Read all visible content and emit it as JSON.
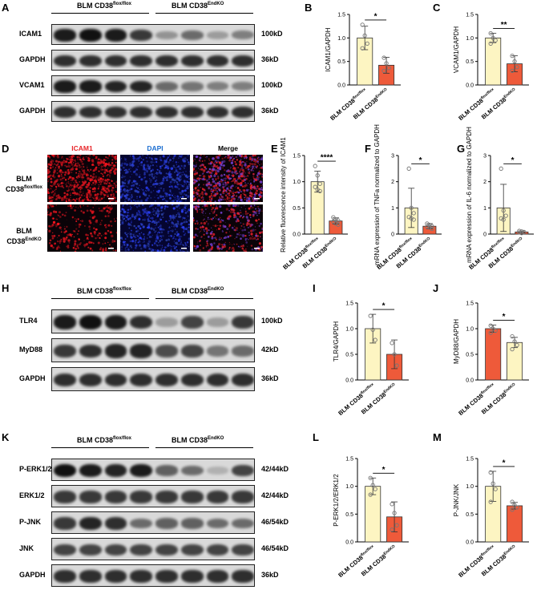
{
  "panels": {
    "A": {
      "letter": "A",
      "groups": [
        "BLM CD38",
        "BLM CD38"
      ],
      "group_sup": [
        "flox/flox",
        "EndKO"
      ],
      "rows": [
        {
          "label": "ICAM1",
          "kd": "100kD",
          "intensity": [
            0.95,
            1.0,
            0.95,
            0.8,
            0.35,
            0.55,
            0.3,
            0.45
          ]
        },
        {
          "label": "GAPDH",
          "kd": "36kD",
          "intensity": [
            0.85,
            0.85,
            0.85,
            0.85,
            0.85,
            0.85,
            0.85,
            0.85
          ]
        },
        {
          "label": "VCAM1",
          "kd": "100kD",
          "intensity": [
            0.95,
            0.95,
            0.9,
            0.9,
            0.55,
            0.5,
            0.45,
            0.45
          ]
        },
        {
          "label": "GAPDH",
          "kd": "36kD",
          "intensity": [
            0.85,
            0.85,
            0.85,
            0.85,
            0.85,
            0.85,
            0.85,
            0.85
          ]
        }
      ]
    },
    "D": {
      "letter": "D",
      "columns": [
        "ICAM1",
        "DAPI",
        "Merge"
      ],
      "column_colors": [
        "#e8262a",
        "#1d6fd1",
        "#000000"
      ],
      "row_labels": [
        [
          "BLM",
          "CD38",
          "flox/flox"
        ],
        [
          "BLM",
          "CD38",
          "EndKO"
        ]
      ]
    },
    "H": {
      "letter": "H",
      "groups": [
        "BLM CD38",
        "BLM CD38"
      ],
      "group_sup": [
        "flox/flox",
        "EndKO"
      ],
      "rows": [
        {
          "label": "TLR4",
          "kd": "100kD",
          "intensity": [
            0.95,
            1.0,
            0.95,
            0.85,
            0.3,
            0.75,
            0.3,
            0.8
          ]
        },
        {
          "label": "MyD88",
          "kd": "42kD",
          "intensity": [
            0.8,
            0.85,
            0.9,
            0.9,
            0.7,
            0.75,
            0.5,
            0.55
          ]
        },
        {
          "label": "GAPDH",
          "kd": "36kD",
          "intensity": [
            0.85,
            0.85,
            0.85,
            0.85,
            0.85,
            0.85,
            0.85,
            0.85
          ]
        }
      ]
    },
    "K": {
      "letter": "K",
      "groups": [
        "BLM CD38",
        "BLM CD38"
      ],
      "group_sup": [
        "flox/flox",
        "EndKO"
      ],
      "rows": [
        {
          "label": "P-ERK1/2",
          "kd": "42/44kD",
          "intensity": [
            1.0,
            0.95,
            0.9,
            0.95,
            0.6,
            0.55,
            0.2,
            0.75
          ]
        },
        {
          "label": "ERK1/2",
          "kd": "42/44kD",
          "intensity": [
            0.8,
            0.8,
            0.8,
            0.8,
            0.8,
            0.8,
            0.8,
            0.8
          ]
        },
        {
          "label": "P-JNK",
          "kd": "46/54kD",
          "intensity": [
            0.8,
            0.9,
            0.85,
            0.55,
            0.6,
            0.6,
            0.55,
            0.55
          ]
        },
        {
          "label": "JNK",
          "kd": "46/54kD",
          "intensity": [
            0.75,
            0.75,
            0.75,
            0.75,
            0.75,
            0.75,
            0.75,
            0.75
          ]
        },
        {
          "label": "GAPDH",
          "kd": "36kD",
          "intensity": [
            0.85,
            0.85,
            0.85,
            0.85,
            0.85,
            0.85,
            0.85,
            0.85
          ]
        }
      ]
    }
  },
  "categories": [
    "BLM CD38",
    "BLM CD38"
  ],
  "category_sup": [
    "flox/flox",
    "EndKO"
  ],
  "colors": {
    "flox": "#fdf5c2",
    "endko": "#ee5a3a",
    "point": "#777777"
  },
  "chart_data": [
    {
      "letter": "B",
      "type": "bar",
      "ylabel": "ICAM1/GAPDH",
      "ylim": [
        0,
        1.5
      ],
      "ticks": [
        "0.0",
        "0.5",
        "1.0",
        "1.5"
      ],
      "values": [
        1.0,
        0.42
      ],
      "errors": [
        0.25,
        0.17
      ],
      "points": [
        [
          1.28,
          1.05,
          0.88,
          0.78
        ],
        [
          0.58,
          0.46,
          0.36,
          0.3
        ]
      ],
      "sig": "*",
      "palette": [
        "flox",
        "endko"
      ]
    },
    {
      "letter": "C",
      "type": "bar",
      "ylabel": "VCAM1/GAPDH",
      "ylim": [
        0,
        1.5
      ],
      "ticks": [
        "0.0",
        "0.5",
        "1.0",
        "1.5"
      ],
      "values": [
        1.0,
        0.45
      ],
      "errors": [
        0.1,
        0.17
      ],
      "points": [
        [
          1.1,
          1.0,
          0.95,
          0.88
        ],
        [
          0.62,
          0.5,
          0.38,
          0.3
        ]
      ],
      "sig": "**",
      "palette": [
        "flox",
        "endko"
      ]
    },
    {
      "letter": "E",
      "type": "bar",
      "ylabel": "Relative fluorescence intensity of ICAM1",
      "ylim": [
        0,
        1.5
      ],
      "ticks": [
        "0.0",
        "0.5",
        "1.0",
        "1.5"
      ],
      "values": [
        1.0,
        0.25
      ],
      "errors": [
        0.2,
        0.06
      ],
      "points": [
        [
          1.3,
          1.12,
          0.96,
          0.9,
          0.85,
          0.82
        ],
        [
          0.32,
          0.28,
          0.26,
          0.24,
          0.2,
          0.18
        ]
      ],
      "sig": "****",
      "palette": [
        "flox",
        "endko"
      ]
    },
    {
      "letter": "F",
      "type": "bar",
      "ylabel": "mRNA expression of TNFa normalized to GAPDH",
      "ylim": [
        0,
        3
      ],
      "ticks": [
        "0",
        "1",
        "2",
        "3"
      ],
      "values": [
        1.0,
        0.3
      ],
      "errors": [
        0.75,
        0.1
      ],
      "points": [
        [
          2.5,
          1.0,
          0.8,
          0.65,
          0.6,
          0.55
        ],
        [
          0.4,
          0.35,
          0.3,
          0.28,
          0.25,
          0.2
        ]
      ],
      "sig": "*",
      "palette": [
        "flox",
        "endko"
      ]
    },
    {
      "letter": "G",
      "type": "bar",
      "ylabel": "mRNA expression of IL-6 normalized to GAPDH",
      "ylim": [
        0,
        3
      ],
      "ticks": [
        "0",
        "1",
        "2",
        "3"
      ],
      "values": [
        1.0,
        0.08
      ],
      "errors": [
        0.9,
        0.04
      ],
      "points": [
        [
          2.5,
          0.9,
          0.7,
          0.6,
          0.55
        ],
        [
          0.12,
          0.1,
          0.08,
          0.06,
          0.04
        ]
      ],
      "sig": "*",
      "palette": [
        "flox",
        "endko"
      ]
    },
    {
      "letter": "I",
      "type": "bar",
      "ylabel": "TLR4/GAPDH",
      "ylim": [
        0,
        1.5
      ],
      "ticks": [
        "0.0",
        "0.5",
        "1.0",
        "1.5"
      ],
      "values": [
        1.0,
        0.5
      ],
      "errors": [
        0.28,
        0.28
      ],
      "points": [
        [
          1.25,
          0.98,
          0.78
        ],
        [
          0.72,
          0.5,
          0.28
        ]
      ],
      "sig": "*",
      "palette": [
        "flox",
        "endko"
      ]
    },
    {
      "letter": "J",
      "type": "bar",
      "ylabel": "MyD88/GAPDH",
      "ylim": [
        0,
        1.5
      ],
      "ticks": [
        "0.0",
        "0.5",
        "1.0",
        "1.5"
      ],
      "values": [
        1.0,
        0.73
      ],
      "errors": [
        0.07,
        0.1
      ],
      "points": [
        [
          1.06,
          1.0,
          0.96,
          0.92
        ],
        [
          0.85,
          0.75,
          0.68,
          0.6
        ]
      ],
      "sig": "*",
      "palette": [
        "endko",
        "flox"
      ]
    },
    {
      "letter": "L",
      "type": "bar",
      "ylabel": "P-ERK1/2/ERK1/2",
      "ylim": [
        0,
        1.5
      ],
      "ticks": [
        "0.0",
        "0.5",
        "1.0",
        "1.5"
      ],
      "values": [
        1.0,
        0.45
      ],
      "errors": [
        0.15,
        0.27
      ],
      "points": [
        [
          1.15,
          1.02,
          0.95,
          0.85
        ],
        [
          0.68,
          0.52,
          0.3,
          0.22
        ]
      ],
      "sig": "*",
      "palette": [
        "flox",
        "endko"
      ]
    },
    {
      "letter": "M",
      "type": "bar",
      "ylabel": "P-JNK/JNK",
      "ylim": [
        0,
        1.5
      ],
      "ticks": [
        "0.0",
        "0.5",
        "1.0",
        "1.5"
      ],
      "values": [
        1.0,
        0.65
      ],
      "errors": [
        0.27,
        0.06
      ],
      "points": [
        [
          1.25,
          1.05,
          0.95,
          0.72
        ],
        [
          0.72,
          0.66,
          0.62,
          0.58
        ]
      ],
      "sig": "*",
      "palette": [
        "flox",
        "endko"
      ]
    }
  ]
}
